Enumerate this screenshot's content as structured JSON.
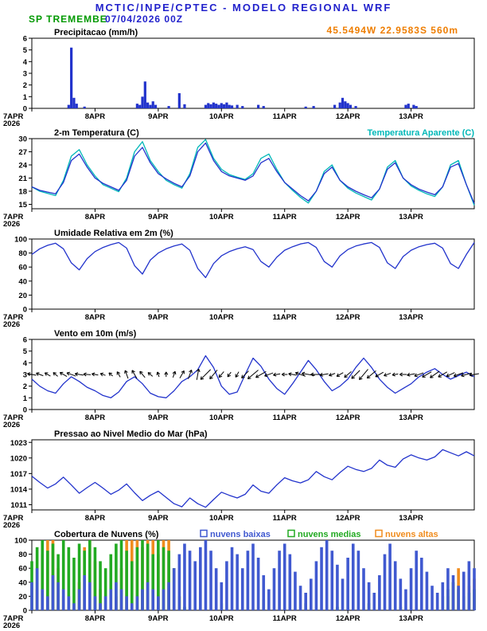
{
  "header": {
    "title": "MCTIC/INPE/CPTEC - MODELO REGIONAL WRF",
    "station": "SP TREMEMBE",
    "run": "07/04/2026 00Z",
    "location": "45.5494W 22.9583S 560m"
  },
  "colors": {
    "header_blue": "#2222cc",
    "station_green": "#009900",
    "location_orange": "#ee7d00",
    "axis_black": "#000000",
    "line_blue": "#2233cc",
    "apparent_cyan": "#00b8b8",
    "cloud_low_blue": "#4059d0",
    "cloud_mid_green": "#22aa22",
    "cloud_high_orange": "#f08c1e"
  },
  "x_axis": {
    "hours_total": 168,
    "tick_hours": [
      0,
      24,
      48,
      72,
      96,
      120,
      144
    ],
    "tick_labels": [
      "7APR",
      "8APR",
      "9APR",
      "10APR",
      "11APR",
      "12APR",
      "13APR"
    ],
    "year_label": "2026"
  },
  "chart_data": [
    {
      "id": "precipitation",
      "title": "Precipitacao (mm/h)",
      "type": "bar",
      "ylim": [
        0,
        6
      ],
      "yticks": [
        0,
        1,
        2,
        3,
        4,
        5,
        6
      ],
      "bar_color": "#2233cc",
      "bars": [
        [
          14,
          0.3
        ],
        [
          15,
          5.2
        ],
        [
          16,
          0.9
        ],
        [
          17,
          0.4
        ],
        [
          20,
          0.15
        ],
        [
          40,
          0.4
        ],
        [
          41,
          0.3
        ],
        [
          42,
          1.0
        ],
        [
          43,
          2.3
        ],
        [
          44,
          0.5
        ],
        [
          45,
          0.3
        ],
        [
          46,
          0.6
        ],
        [
          47,
          0.3
        ],
        [
          52,
          0.2
        ],
        [
          56,
          1.3
        ],
        [
          58,
          0.35
        ],
        [
          66,
          0.3
        ],
        [
          67,
          0.45
        ],
        [
          68,
          0.35
        ],
        [
          69,
          0.5
        ],
        [
          70,
          0.4
        ],
        [
          71,
          0.3
        ],
        [
          72,
          0.45
        ],
        [
          73,
          0.35
        ],
        [
          74,
          0.5
        ],
        [
          75,
          0.3
        ],
        [
          76,
          0.25
        ],
        [
          78,
          0.3
        ],
        [
          80,
          0.2
        ],
        [
          86,
          0.3
        ],
        [
          88,
          0.2
        ],
        [
          104,
          0.15
        ],
        [
          107,
          0.2
        ],
        [
          115,
          0.3
        ],
        [
          117,
          0.5
        ],
        [
          118,
          0.9
        ],
        [
          119,
          0.6
        ],
        [
          120,
          0.45
        ],
        [
          121,
          0.3
        ],
        [
          123,
          0.2
        ],
        [
          142,
          0.3
        ],
        [
          143,
          0.4
        ],
        [
          145,
          0.3
        ],
        [
          146,
          0.2
        ]
      ]
    },
    {
      "id": "temperature-2m",
      "title": "2-m Temperatura (C)",
      "right_label": "Temperatura Aparente (C)",
      "right_label_color": "#00b8b8",
      "type": "line",
      "step_h": 3,
      "ylim": [
        14,
        30
      ],
      "yticks": [
        15,
        18,
        21,
        24,
        27,
        30
      ],
      "series": [
        {
          "name": "Temperatura Aparente (C)",
          "color": "#00b8b8",
          "values": [
            19.0,
            18.0,
            17.5,
            17.0,
            20.5,
            26.0,
            27.5,
            24.0,
            21.5,
            19.5,
            18.7,
            17.9,
            21.0,
            27.0,
            29.3,
            25.0,
            22.5,
            20.5,
            19.5,
            18.7,
            22.0,
            28.0,
            29.8,
            25.5,
            23.0,
            21.8,
            21.2,
            20.7,
            22.0,
            25.5,
            26.5,
            23.0,
            20.0,
            18.2,
            16.6,
            15.3,
            18.0,
            22.5,
            24.0,
            20.5,
            18.7,
            17.6,
            16.8,
            16.0,
            18.5,
            23.5,
            25.0,
            21.0,
            19.2,
            18.2,
            17.4,
            16.8,
            19.0,
            24.0,
            25.0,
            19.5,
            14.8
          ]
        },
        {
          "name": "2-m Temperatura (C)",
          "color": "#2233cc",
          "values": [
            19.0,
            18.2,
            17.8,
            17.4,
            20.0,
            25.0,
            26.5,
            23.5,
            21.0,
            19.8,
            19.0,
            18.2,
            20.5,
            26.0,
            28.0,
            24.5,
            22.0,
            20.8,
            19.8,
            19.0,
            21.5,
            27.0,
            29.0,
            25.0,
            22.5,
            21.5,
            21.0,
            20.5,
            21.5,
            24.5,
            25.5,
            22.5,
            20.0,
            18.5,
            17.0,
            15.8,
            18.0,
            22.0,
            23.5,
            20.5,
            19.0,
            18.0,
            17.2,
            16.5,
            18.5,
            23.0,
            24.5,
            21.0,
            19.5,
            18.5,
            17.8,
            17.2,
            19.0,
            23.5,
            24.3,
            19.5,
            15.2
          ]
        }
      ]
    },
    {
      "id": "relative-humidity-2m",
      "title": "Umidade Relativa em 2m (%)",
      "type": "line",
      "step_h": 3,
      "ylim": [
        0,
        100
      ],
      "yticks": [
        0,
        20,
        40,
        60,
        80,
        100
      ],
      "series": [
        {
          "name": "Umidade Relativa em 2m",
          "color": "#2233cc",
          "values": [
            78,
            86,
            91,
            94,
            86,
            66,
            56,
            72,
            82,
            88,
            92,
            95,
            87,
            62,
            50,
            70,
            80,
            86,
            90,
            93,
            84,
            58,
            45,
            65,
            76,
            82,
            86,
            89,
            85,
            68,
            60,
            74,
            84,
            89,
            93,
            95,
            88,
            68,
            60,
            76,
            85,
            90,
            93,
            95,
            88,
            66,
            58,
            75,
            84,
            89,
            92,
            94,
            87,
            65,
            58,
            78,
            95
          ]
        }
      ]
    },
    {
      "id": "wind-10m",
      "title": "Vento em 10m (m/s)",
      "type": "line",
      "step_h": 3,
      "ylim": [
        0,
        6
      ],
      "yticks": [
        0,
        1,
        2,
        3,
        4,
        5,
        6
      ],
      "series": [
        {
          "name": "Velocidade do Vento 10m",
          "color": "#2233cc",
          "values": [
            2.6,
            2.0,
            1.6,
            1.4,
            2.2,
            2.8,
            2.4,
            1.9,
            1.6,
            1.2,
            1.0,
            1.5,
            2.4,
            2.8,
            2.2,
            1.4,
            1.1,
            1.0,
            1.6,
            2.4,
            2.8,
            3.4,
            4.6,
            3.6,
            2.0,
            1.3,
            1.5,
            3.0,
            4.4,
            3.7,
            2.6,
            1.8,
            1.3,
            2.2,
            3.2,
            4.2,
            3.4,
            2.4,
            1.6,
            2.0,
            2.6,
            3.6,
            4.4,
            3.6,
            2.6,
            1.9,
            1.4,
            1.8,
            2.2,
            2.8,
            3.2,
            3.5,
            3.0,
            2.6,
            2.9,
            3.2,
            2.8
          ]
        }
      ],
      "arrows": {
        "step_h": 3,
        "anchor_value": 3,
        "color": "#000000",
        "dir_from_deg": [
          100,
          110,
          120,
          130,
          120,
          110,
          100,
          95,
          100,
          110,
          130,
          150,
          160,
          150,
          140,
          130,
          160,
          180,
          200,
          210,
          200,
          190,
          45,
          40,
          40,
          35,
          30,
          45,
          50,
          60,
          70,
          80,
          90,
          100,
          110,
          100,
          90,
          80,
          70,
          60,
          50,
          45,
          40,
          50,
          60,
          70,
          80,
          90,
          80,
          70,
          60,
          55,
          60,
          65,
          70,
          75,
          80
        ]
      }
    },
    {
      "id": "mslp",
      "title": "Pressao ao Nivel Medio do Mar (hPa)",
      "type": "line",
      "step_h": 3,
      "ylim": [
        1010,
        1023.5
      ],
      "yticks": [
        1011,
        1014,
        1017,
        1020,
        1023
      ],
      "series": [
        {
          "name": "Pressao ao Nivel Medio do Mar",
          "color": "#2233cc",
          "values": [
            1016.5,
            1015.3,
            1014.2,
            1015.0,
            1016.3,
            1014.8,
            1013.2,
            1014.3,
            1015.3,
            1014.2,
            1013.0,
            1013.8,
            1015.0,
            1013.3,
            1011.8,
            1012.8,
            1013.6,
            1012.4,
            1011.2,
            1010.6,
            1012.3,
            1011.2,
            1010.5,
            1012.0,
            1013.4,
            1012.8,
            1012.3,
            1013.0,
            1014.8,
            1013.6,
            1013.2,
            1014.8,
            1016.2,
            1015.6,
            1015.2,
            1015.8,
            1017.4,
            1016.4,
            1015.8,
            1017.2,
            1018.4,
            1017.8,
            1017.4,
            1018.0,
            1019.6,
            1018.6,
            1018.2,
            1019.8,
            1020.6,
            1020.0,
            1019.6,
            1020.2,
            1021.6,
            1021.0,
            1020.4,
            1021.2,
            1020.4
          ]
        }
      ]
    },
    {
      "id": "cloud-cover",
      "title": "Cobertura de Nuvens (%)",
      "type": "multibar",
      "step_h": 2,
      "ylim": [
        0,
        100
      ],
      "yticks": [
        0,
        20,
        40,
        60,
        80,
        100
      ],
      "legend": [
        {
          "label": "nuvens baixas",
          "color": "#4059d0"
        },
        {
          "label": "nuvens medias",
          "color": "#22aa22"
        },
        {
          "label": "nuvens altas",
          "color": "#f08c1e"
        }
      ],
      "series": [
        {
          "name": "nuvens altas",
          "color": "#f08c1e",
          "values": [
            0,
            30,
            80,
            100,
            100,
            60,
            20,
            0,
            0,
            40,
            90,
            100,
            70,
            30,
            0,
            0,
            20,
            60,
            100,
            100,
            100,
            90,
            100,
            100,
            80,
            100,
            100,
            60,
            20,
            0,
            0,
            0,
            0,
            0,
            0,
            0,
            0,
            0,
            0,
            0,
            0,
            0,
            0,
            0,
            0,
            0,
            0,
            0,
            0,
            0,
            0,
            0,
            0,
            0,
            0,
            0,
            0,
            0,
            0,
            0,
            0,
            0,
            0,
            0,
            0,
            0,
            0,
            0,
            0,
            0,
            0,
            0,
            0,
            0,
            0,
            0,
            0,
            0,
            0,
            20,
            40,
            60,
            50,
            35,
            45
          ]
        },
        {
          "name": "nuvens medias",
          "color": "#22aa22",
          "values": [
            70,
            90,
            100,
            85,
            95,
            80,
            100,
            90,
            75,
            95,
            85,
            100,
            90,
            70,
            60,
            80,
            95,
            100,
            85,
            70,
            90,
            100,
            95,
            80,
            100,
            90,
            85,
            60,
            20,
            5,
            0,
            0,
            0,
            0,
            0,
            0,
            10,
            0,
            0,
            0,
            0,
            0,
            0,
            0,
            15,
            0,
            0,
            0,
            0,
            0,
            0,
            0,
            10,
            0,
            0,
            0,
            0,
            0,
            5,
            0,
            0,
            0,
            0,
            0,
            10,
            0,
            0,
            0,
            0,
            0,
            5,
            0,
            0,
            0,
            0,
            0,
            0,
            0,
            20,
            30,
            40,
            30,
            20,
            25,
            30
          ]
        },
        {
          "name": "nuvens baixas",
          "color": "#4059d0",
          "values": [
            40,
            60,
            30,
            20,
            50,
            40,
            30,
            20,
            10,
            30,
            50,
            40,
            20,
            10,
            20,
            30,
            40,
            30,
            20,
            10,
            20,
            30,
            40,
            30,
            20,
            30,
            40,
            60,
            80,
            95,
            85,
            70,
            90,
            100,
            85,
            60,
            40,
            70,
            90,
            80,
            60,
            85,
            95,
            75,
            50,
            30,
            60,
            85,
            95,
            80,
            55,
            35,
            25,
            45,
            70,
            90,
            100,
            85,
            65,
            45,
            75,
            95,
            85,
            60,
            40,
            25,
            50,
            80,
            95,
            70,
            45,
            30,
            60,
            85,
            75,
            55,
            35,
            25,
            40,
            60,
            50,
            35,
            55,
            70,
            60
          ]
        }
      ]
    }
  ]
}
